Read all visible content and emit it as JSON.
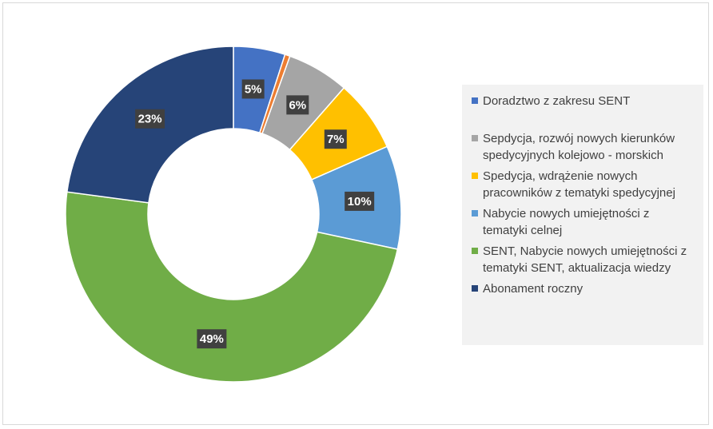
{
  "chart_data": {
    "type": "pie",
    "donut": true,
    "legend_position": "right",
    "slices": [
      {
        "label": "Doradztwo z zakresu SENT",
        "value": 5,
        "display": "5%",
        "color": "#4472c4"
      },
      {
        "label": "",
        "value": 0.5,
        "display": "",
        "color": "#ed7d31"
      },
      {
        "label": "Sepdycja, rozwój nowych kierunków spedycyjnych kolejowo - morskich",
        "value": 6,
        "display": "6%",
        "color": "#a5a5a5"
      },
      {
        "label": "Spedycja, wdrążenie nowych pracowników z tematyki spedycyjnej",
        "value": 7,
        "display": "7%",
        "color": "#ffc000"
      },
      {
        "label": "Nabycie nowych umiejętności z tematyki celnej",
        "value": 10,
        "display": "10%",
        "color": "#5b9bd5"
      },
      {
        "label": "SENT, Nabycie nowych umiejętności z tematyki SENT, aktualizacja wiedzy",
        "value": 49,
        "display": "49%",
        "color": "#70ad47"
      },
      {
        "label": "Abonament roczny",
        "value": 23,
        "display": "23%",
        "color": "#264478"
      }
    ],
    "legend": [
      {
        "slice": 0,
        "lines": [
          "Doradztwo z zakresu SENT"
        ]
      },
      {
        "slice": 2,
        "lines": [
          "Sepdycja, rozwój nowych kierunków",
          "spedycyjnych kolejowo - morskich"
        ]
      },
      {
        "slice": 3,
        "lines": [
          "Spedycja, wdrążenie nowych",
          "pracowników z tematyki spedycyjnej"
        ]
      },
      {
        "slice": 4,
        "lines": [
          "Nabycie nowych umiejętności z",
          "tematyki celnej"
        ]
      },
      {
        "slice": 5,
        "lines": [
          "SENT, Nabycie nowych umiejętności z",
          "tematyki SENT, aktualizacja wiedzy"
        ]
      },
      {
        "slice": 6,
        "lines": [
          "Abonament roczny"
        ]
      }
    ]
  }
}
